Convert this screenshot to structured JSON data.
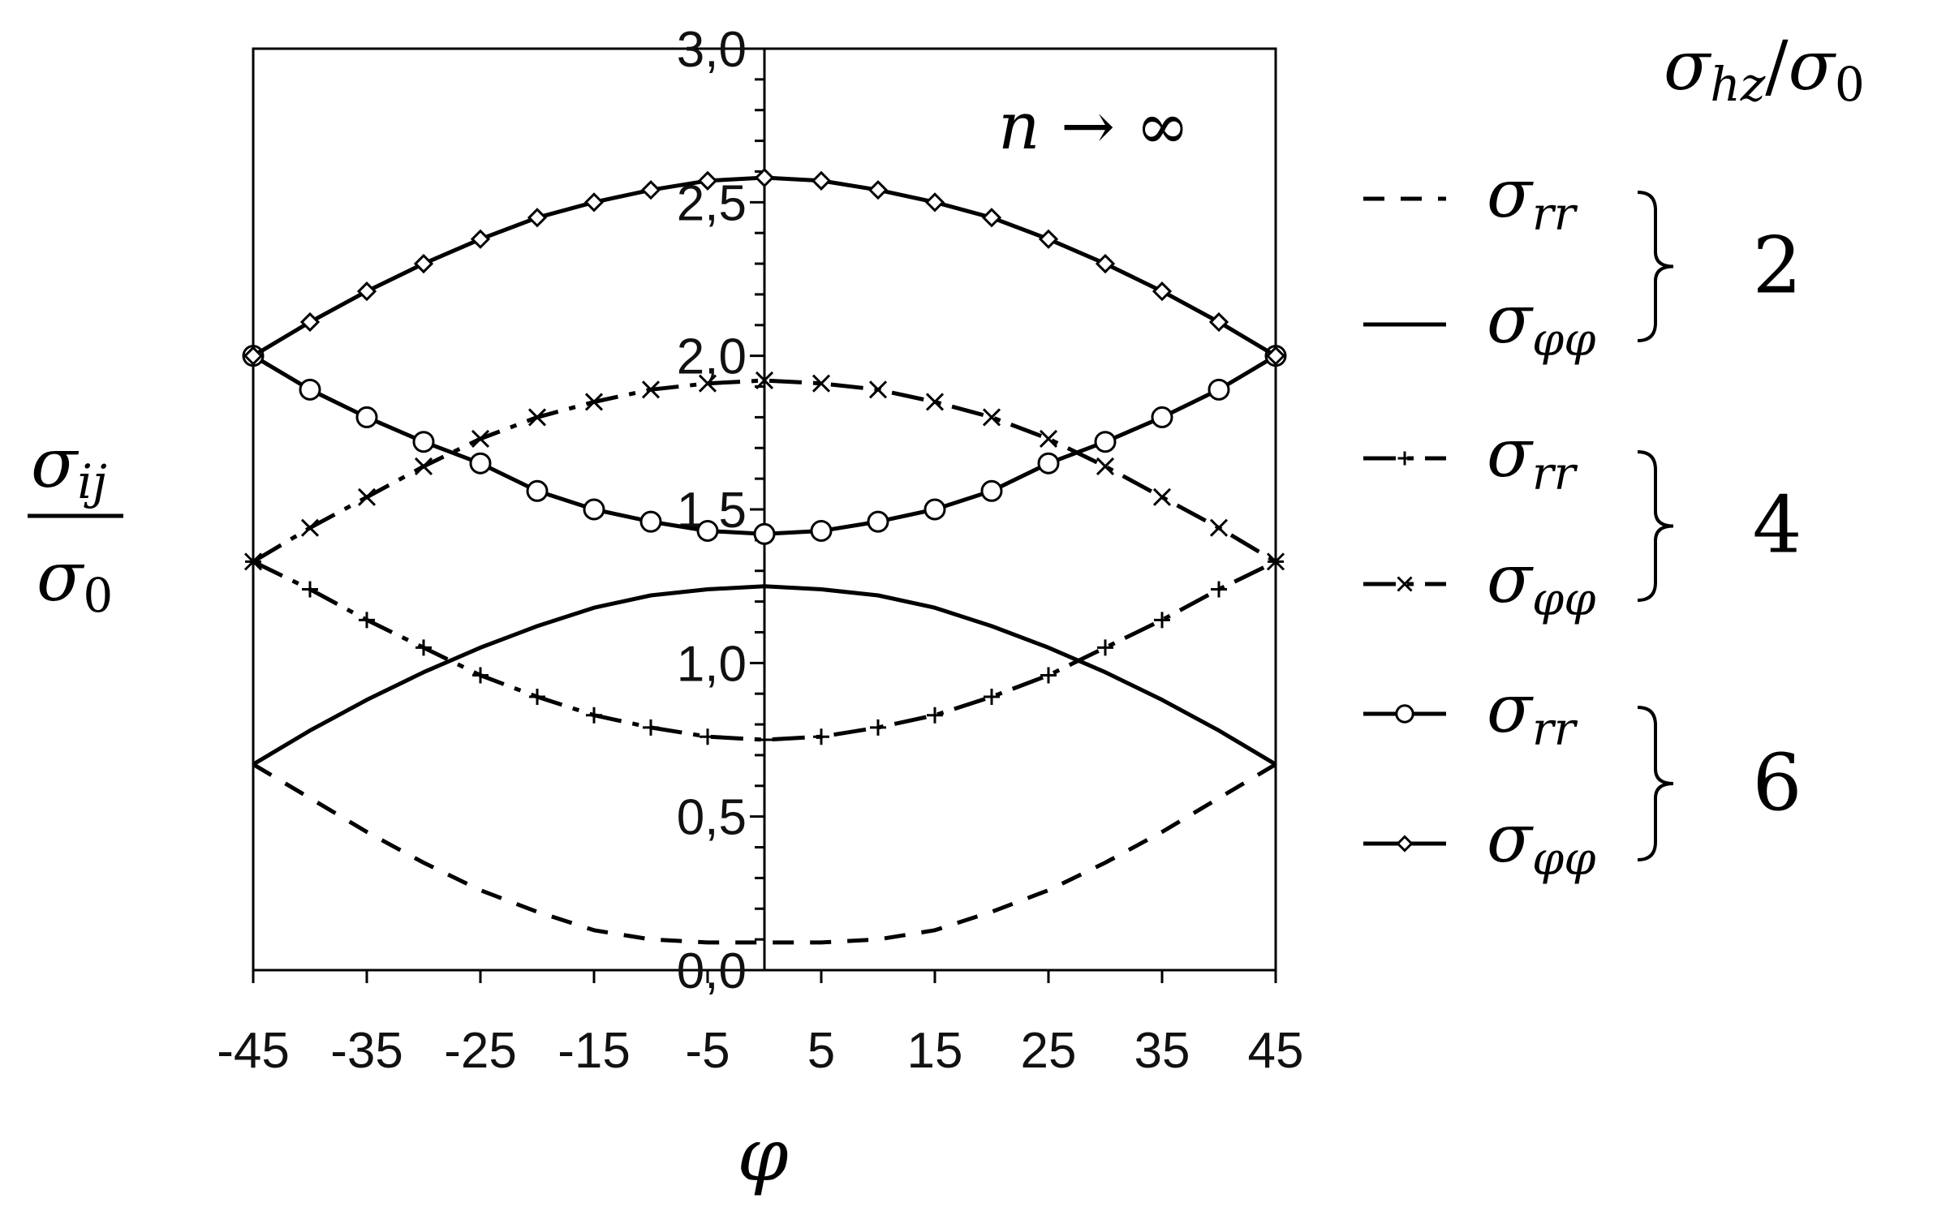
{
  "chart_data": {
    "type": "line",
    "xlabel": "φ",
    "ylabel": {
      "numerator": "σ",
      "numerator_sub": "ij",
      "denominator": "σ",
      "denominator_sub": "0"
    },
    "annotation": {
      "text": "n → ∞"
    },
    "legend_title": {
      "num": "σ",
      "num_sub": "hz",
      "slash": "/",
      "den": "σ",
      "den_sub": "0"
    },
    "xlim": [
      -45,
      45
    ],
    "ylim": [
      0,
      3
    ],
    "xticks": [
      "-45",
      "-35",
      "-25",
      "-15",
      "-5",
      "5",
      "15",
      "25",
      "35",
      "45"
    ],
    "xtick_values": [
      -45,
      -35,
      -25,
      -15,
      -5,
      5,
      15,
      25,
      35,
      45
    ],
    "yticks": [
      "0,0",
      "0,5",
      "1,0",
      "1,5",
      "2,0",
      "2,5",
      "3,0"
    ],
    "ytick_values": [
      0,
      0.5,
      1,
      1.5,
      2,
      2.5,
      3
    ],
    "legend_placement": "right",
    "groups": [
      {
        "label": "2",
        "entries": [
          {
            "symbol": "σ",
            "sub": "rr",
            "series": 0
          },
          {
            "symbol": "σ",
            "sub": "φφ",
            "series": 1
          }
        ]
      },
      {
        "label": "4",
        "entries": [
          {
            "symbol": "σ",
            "sub": "rr",
            "series": 2
          },
          {
            "symbol": "σ",
            "sub": "φφ",
            "series": 3
          }
        ]
      },
      {
        "label": "6",
        "entries": [
          {
            "symbol": "σ",
            "sub": "rr",
            "series": 4
          },
          {
            "symbol": "σ",
            "sub": "φφ",
            "series": 5
          }
        ]
      }
    ],
    "x": [
      -45,
      -40,
      -35,
      -30,
      -25,
      -20,
      -15,
      -10,
      -5,
      0,
      5,
      10,
      15,
      20,
      25,
      30,
      35,
      40,
      45
    ],
    "series": [
      {
        "group": "2",
        "component": "rr",
        "style": "dashed",
        "marker": "none",
        "values": [
          0.67,
          0.56,
          0.45,
          0.35,
          0.26,
          0.19,
          0.13,
          0.1,
          0.09,
          0.09,
          0.09,
          0.1,
          0.13,
          0.19,
          0.26,
          0.35,
          0.45,
          0.56,
          0.67
        ]
      },
      {
        "group": "2",
        "component": "φφ",
        "style": "solid",
        "marker": "none",
        "values": [
          0.67,
          0.78,
          0.88,
          0.97,
          1.05,
          1.12,
          1.18,
          1.22,
          1.24,
          1.25,
          1.24,
          1.22,
          1.18,
          1.12,
          1.05,
          0.97,
          0.88,
          0.78,
          0.67
        ]
      },
      {
        "group": "4",
        "component": "rr",
        "style": "dash-dot",
        "marker": "plus",
        "values": [
          1.33,
          1.24,
          1.14,
          1.05,
          0.96,
          0.89,
          0.83,
          0.79,
          0.76,
          0.75,
          0.76,
          0.79,
          0.83,
          0.89,
          0.96,
          1.05,
          1.14,
          1.24,
          1.33
        ]
      },
      {
        "group": "4",
        "component": "φφ",
        "style": "dash-dot",
        "marker": "x",
        "values": [
          1.33,
          1.44,
          1.54,
          1.64,
          1.73,
          1.8,
          1.85,
          1.89,
          1.91,
          1.92,
          1.91,
          1.89,
          1.85,
          1.8,
          1.73,
          1.64,
          1.54,
          1.44,
          1.33
        ]
      },
      {
        "group": "6",
        "component": "rr",
        "style": "solid",
        "marker": "circle",
        "values": [
          2.0,
          1.89,
          1.8,
          1.72,
          1.65,
          1.56,
          1.5,
          1.46,
          1.43,
          1.42,
          1.43,
          1.46,
          1.5,
          1.56,
          1.65,
          1.72,
          1.8,
          1.89,
          2.0
        ]
      },
      {
        "group": "6",
        "component": "φφ",
        "style": "solid",
        "marker": "diamond",
        "values": [
          2.0,
          2.11,
          2.21,
          2.3,
          2.38,
          2.45,
          2.5,
          2.54,
          2.57,
          2.58,
          2.57,
          2.54,
          2.5,
          2.45,
          2.38,
          2.3,
          2.21,
          2.11,
          2.0
        ]
      }
    ]
  }
}
